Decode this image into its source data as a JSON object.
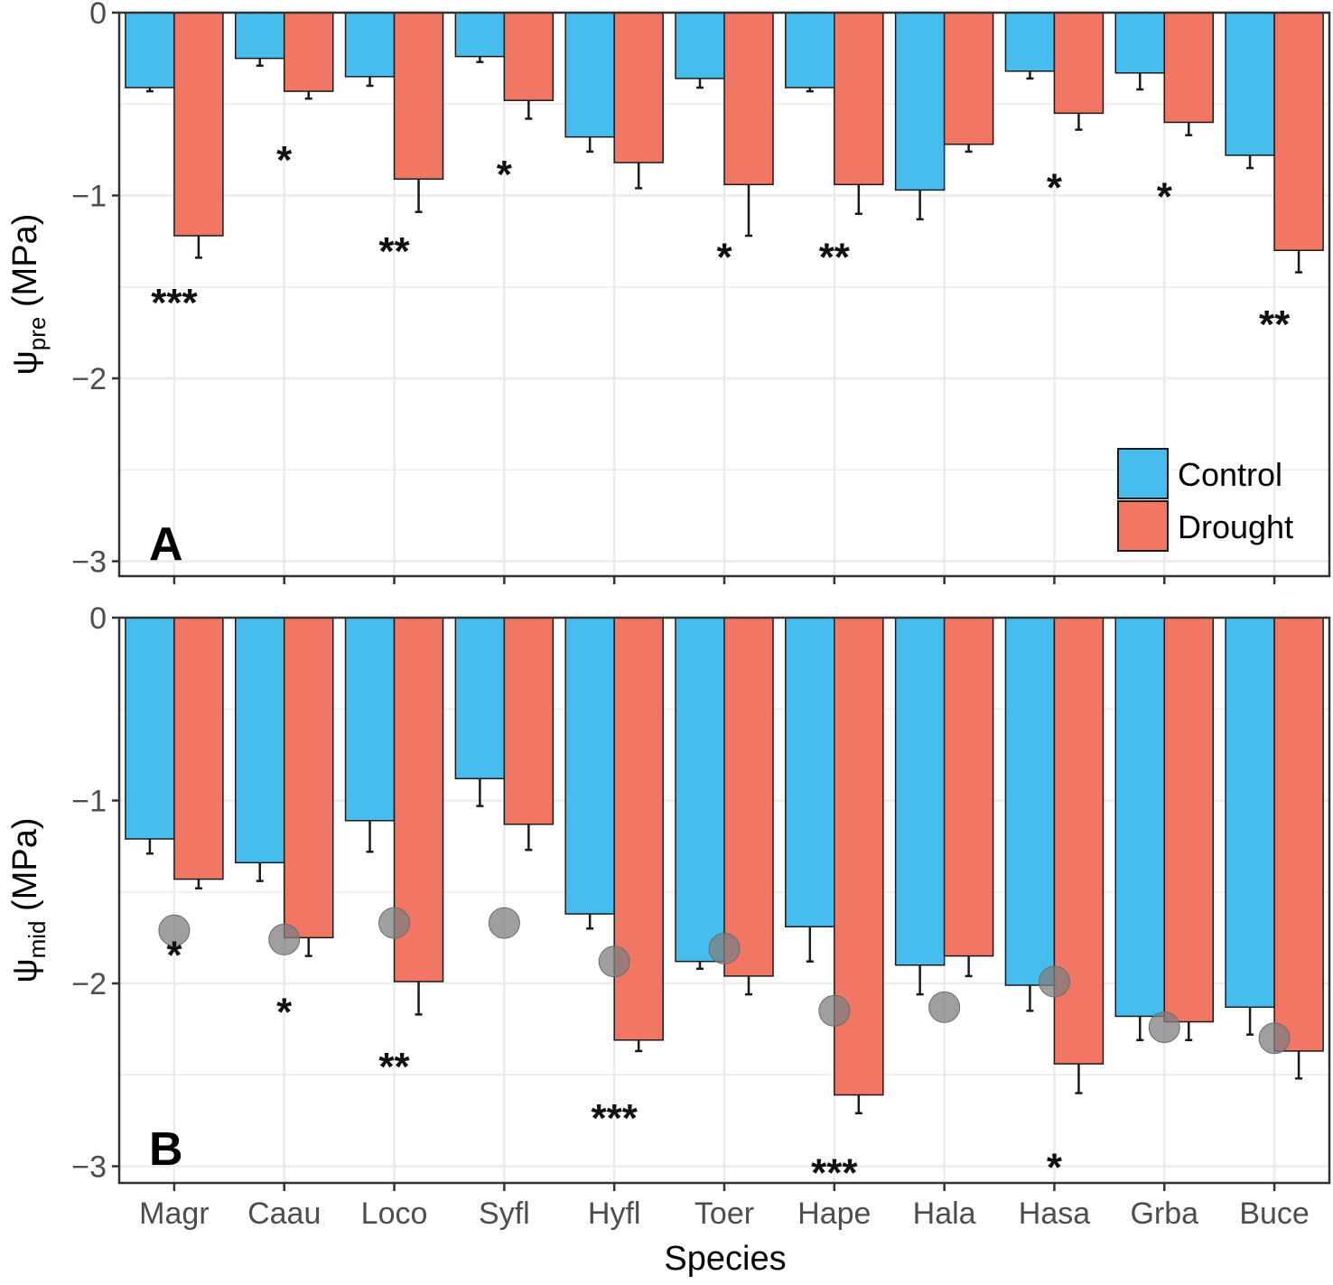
{
  "chart_data": {
    "type": "bar",
    "xlabel": "Species",
    "categories": [
      "Magr",
      "Caau",
      "Loco",
      "Syfl",
      "Hyfl",
      "Toer",
      "Hape",
      "Hala",
      "Hasa",
      "Grba",
      "Buce"
    ],
    "legend": {
      "position": "bottom-right of panel A",
      "entries": [
        "Control",
        "Drought"
      ]
    },
    "colors": {
      "Control": "#47bdee",
      "Drought": "#f27664",
      "point": "#7f7f7f",
      "grid": "#ebebeb",
      "border": "#333333"
    },
    "panels": [
      {
        "label": "A",
        "ylabel_main": "ψ",
        "ylabel_sub": "pre",
        "ylabel_tail": " (MPa)",
        "ylim": [
          -3.05,
          0
        ],
        "yticks": [
          0,
          -1,
          -2,
          -3
        ],
        "ytick_labels": [
          "0",
          "−1",
          "−2",
          "−3"
        ],
        "series": [
          {
            "name": "Control",
            "values": [
              -0.41,
              -0.25,
              -0.35,
              -0.24,
              -0.68,
              -0.36,
              -0.41,
              -0.97,
              -0.32,
              -0.33,
              -0.78
            ],
            "errors": [
              0.02,
              0.04,
              0.05,
              0.03,
              0.08,
              0.05,
              0.02,
              0.16,
              0.04,
              0.09,
              0.07
            ]
          },
          {
            "name": "Drought",
            "values": [
              -1.22,
              -0.43,
              -0.91,
              -0.48,
              -0.82,
              -0.94,
              -0.94,
              -0.72,
              -0.55,
              -0.6,
              -1.3
            ],
            "errors": [
              0.12,
              0.04,
              0.18,
              0.1,
              0.14,
              0.28,
              0.16,
              0.04,
              0.09,
              0.07,
              0.12
            ]
          }
        ],
        "significance": [
          {
            "category": "Magr",
            "stars": "***",
            "y": -1.55
          },
          {
            "category": "Caau",
            "stars": "*",
            "y": -0.77
          },
          {
            "category": "Loco",
            "stars": "**",
            "y": -1.27
          },
          {
            "category": "Syfl",
            "stars": "*",
            "y": -0.85
          },
          {
            "category": "Toer",
            "stars": "*",
            "y": -1.3
          },
          {
            "category": "Hape",
            "stars": "**",
            "y": -1.3
          },
          {
            "category": "Hasa",
            "stars": "*",
            "y": -0.92
          },
          {
            "category": "Grba",
            "stars": "*",
            "y": -0.97
          },
          {
            "category": "Buce",
            "stars": "**",
            "y": -1.67
          }
        ]
      },
      {
        "label": "B",
        "ylabel_main": "ψ",
        "ylabel_sub": "mid",
        "ylabel_tail": " (MPa)",
        "ylim": [
          -3.1,
          0
        ],
        "yticks": [
          0,
          -1,
          -2,
          -3
        ],
        "ytick_labels": [
          "0",
          "−1",
          "−2",
          "−3"
        ],
        "series": [
          {
            "name": "Control",
            "values": [
              -1.21,
              -1.34,
              -1.11,
              -0.88,
              -1.62,
              -1.88,
              -1.69,
              -1.9,
              -2.01,
              -2.18,
              -2.13
            ],
            "errors": [
              0.08,
              0.1,
              0.17,
              0.15,
              0.08,
              0.04,
              0.19,
              0.16,
              0.14,
              0.13,
              0.15
            ]
          },
          {
            "name": "Drought",
            "values": [
              -1.43,
              -1.75,
              -1.99,
              -1.13,
              -2.31,
              -1.96,
              -2.61,
              -1.85,
              -2.44,
              -2.21,
              -2.37
            ],
            "errors": [
              0.05,
              0.1,
              0.18,
              0.14,
              0.06,
              0.1,
              0.1,
              0.11,
              0.16,
              0.1,
              0.15
            ]
          }
        ],
        "points": [
          -1.71,
          -1.76,
          -1.67,
          -1.67,
          -1.88,
          -1.81,
          -2.15,
          -2.13,
          -1.99,
          -2.24,
          -2.3
        ],
        "significance": [
          {
            "category": "Magr",
            "stars": "*",
            "y": -1.81
          },
          {
            "category": "Caau",
            "stars": "*",
            "y": -2.12
          },
          {
            "category": "Loco",
            "stars": "**",
            "y": -2.42
          },
          {
            "category": "Hyfl",
            "stars": "***",
            "y": -2.7
          },
          {
            "category": "Hape",
            "stars": "***",
            "y": -3.0
          },
          {
            "category": "Hasa",
            "stars": "*",
            "y": -2.97
          }
        ]
      }
    ]
  }
}
